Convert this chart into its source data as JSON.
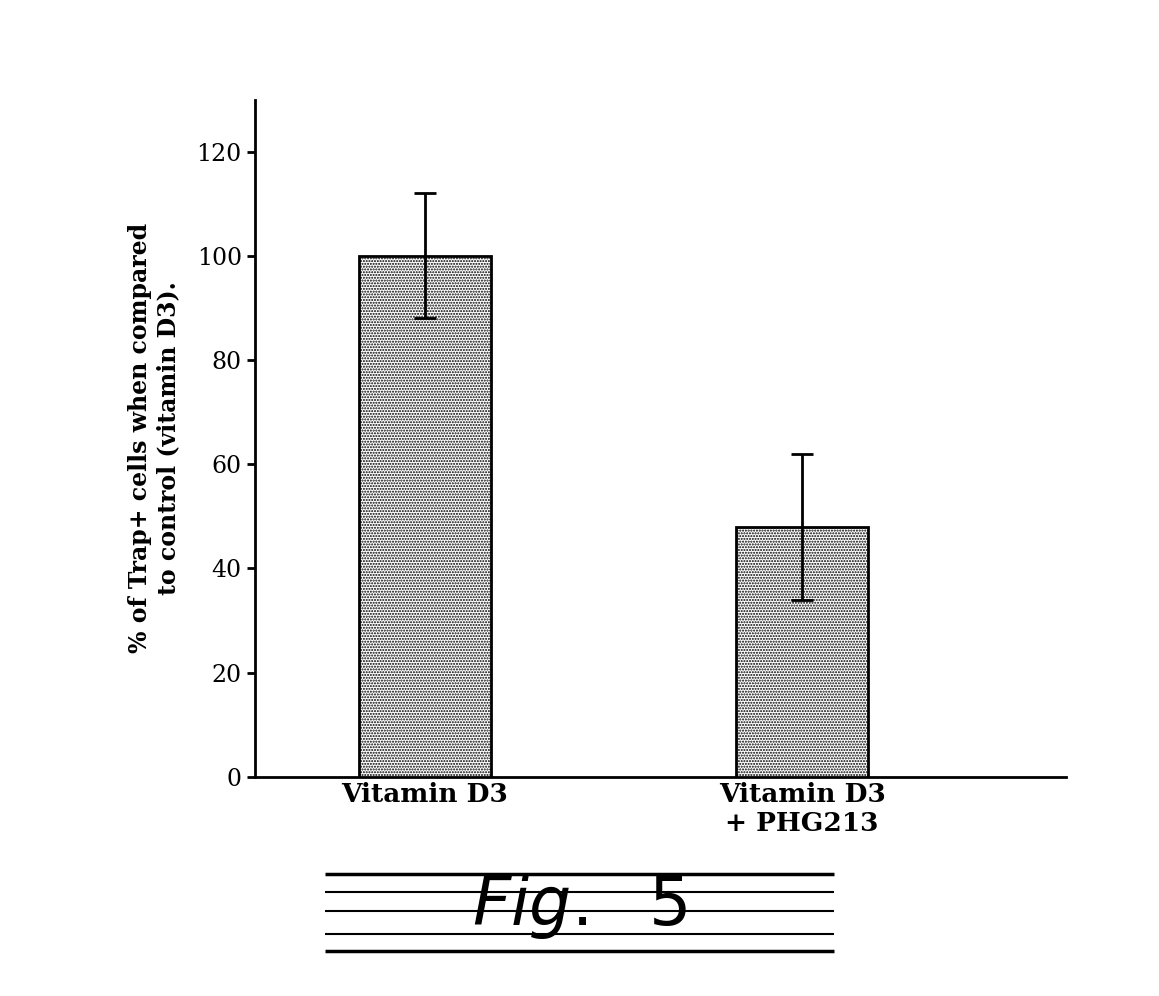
{
  "categories": [
    "Vitamin D3",
    "Vitamin D3\n+ PHG213"
  ],
  "values": [
    100,
    48
  ],
  "errors": [
    12,
    14
  ],
  "bar_edgecolor": "#000000",
  "ylabel_line1": "% of Trap+ cells when compared",
  "ylabel_line2": "to control (vitamin D3).",
  "ylim": [
    0,
    130
  ],
  "yticks": [
    0,
    20,
    40,
    60,
    80,
    100,
    120
  ],
  "bar_width": 0.35,
  "background_color": "#ffffff",
  "ylabel_fontsize": 17,
  "tick_fontsize": 17,
  "xtick_fontsize": 19,
  "bar_positions": [
    1,
    2
  ],
  "xlim": [
    0.55,
    2.7
  ]
}
